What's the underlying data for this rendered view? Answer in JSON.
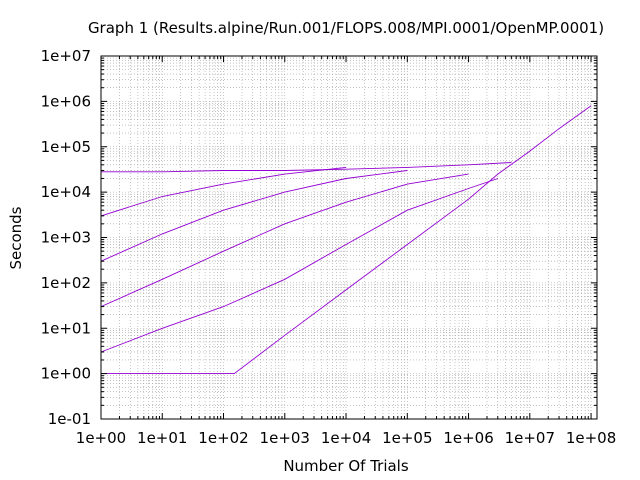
{
  "colors": {
    "series": "#9400d3",
    "grid": "#a0a0a0",
    "axis": "#000000"
  },
  "chart_data": {
    "type": "line",
    "title": "Graph 1 (Results.alpine/Run.001/FLOPS.008/MPI.0001/OpenMP.0001)",
    "xlabel": "Number Of Trials",
    "ylabel": "Seconds",
    "x_scale": "log",
    "y_scale": "log",
    "xlim": [
      1,
      125000000
    ],
    "ylim": [
      0.1,
      10000000
    ],
    "x_ticks": [
      "1e+00",
      "1e+01",
      "1e+02",
      "1e+03",
      "1e+04",
      "1e+05",
      "1e+06",
      "1e+07",
      "1e+08"
    ],
    "y_ticks": [
      "1e-01",
      "1e+00",
      "1e+01",
      "1e+02",
      "1e+03",
      "1e+04",
      "1e+05",
      "1e+06",
      "1e+07"
    ],
    "grid": true,
    "minor_grid": true,
    "legend": "none",
    "series": [
      {
        "values_note_free": true,
        "x": [
          1,
          3,
          10,
          30,
          100,
          150,
          1000,
          10000,
          100000,
          1000000,
          3000000,
          10000000,
          30000000,
          100000000
        ],
        "y": [
          1,
          1,
          1,
          1,
          1,
          1,
          7,
          70,
          700,
          7000,
          25000,
          80000,
          250000,
          800000
        ]
      },
      {
        "x": [
          1,
          10,
          100,
          1000,
          10000,
          100000,
          1000000,
          5000000
        ],
        "y": [
          28000,
          28000,
          30000,
          30000,
          32000,
          35000,
          40000,
          45000
        ]
      },
      {
        "x": [
          1,
          10,
          100,
          1000,
          10000,
          100000,
          1000000,
          3000000
        ],
        "y": [
          3,
          10,
          30,
          120,
          700,
          4000,
          12000,
          20000
        ]
      },
      {
        "x": [
          1,
          10,
          100,
          1000,
          10000,
          100000,
          1000000
        ],
        "y": [
          30,
          120,
          500,
          2000,
          6000,
          15000,
          25000
        ]
      },
      {
        "x": [
          1,
          10,
          100,
          1000,
          10000,
          100000
        ],
        "y": [
          300,
          1200,
          4000,
          10000,
          20000,
          30000
        ]
      },
      {
        "x": [
          1,
          10,
          100,
          1000,
          10000
        ],
        "y": [
          3000,
          8000,
          15000,
          25000,
          35000
        ]
      }
    ]
  }
}
